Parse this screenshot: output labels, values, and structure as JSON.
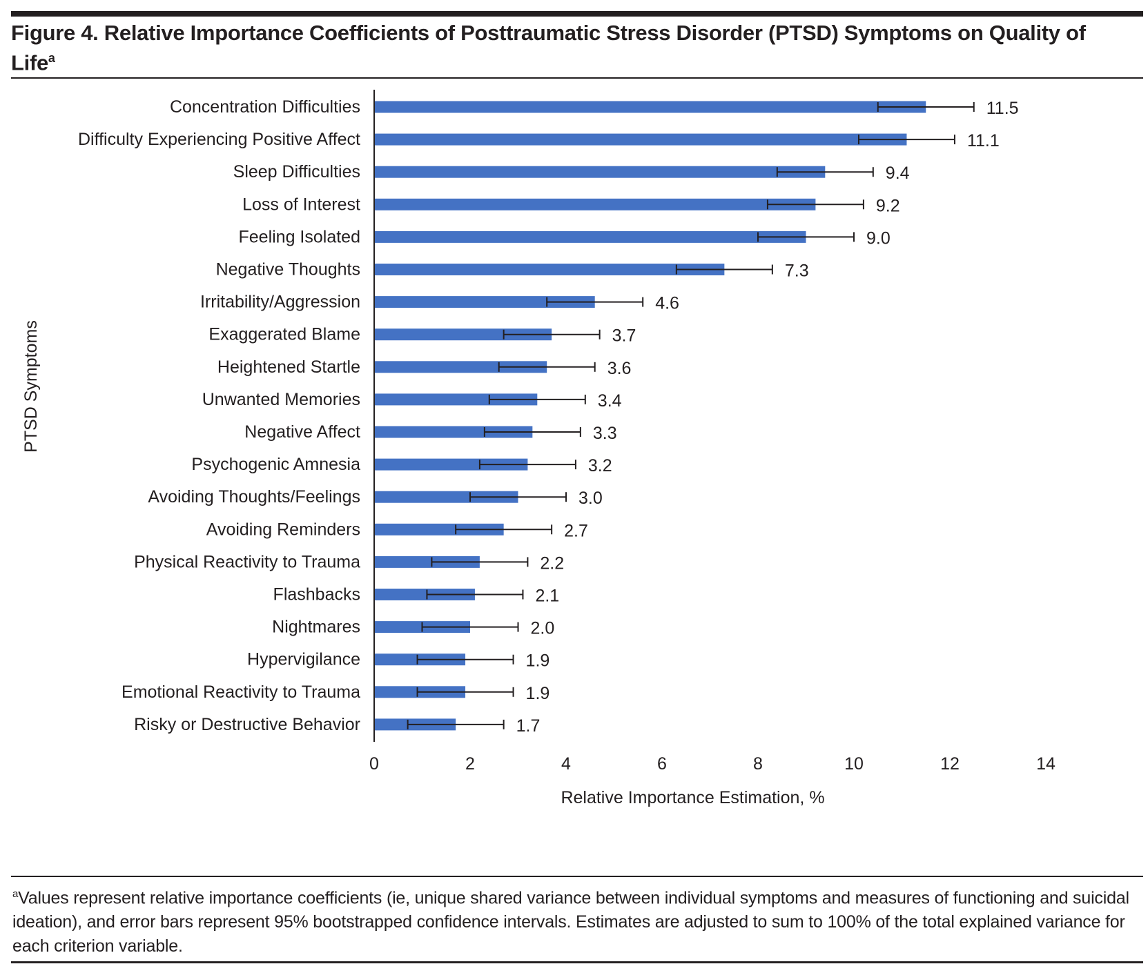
{
  "figure": {
    "title": "Figure 4. Relative Importance Coefficients of Posttraumatic Stress Disorder (PTSD) Symptoms on Quality of Life",
    "title_superscript": "a",
    "footnote_marker": "a",
    "footnote": "Values represent relative importance coefficients (ie, unique shared variance between individual symptoms and measures of functioning and suicidal ideation), and error bars represent 95% bootstrapped confidence intervals. Estimates are adjusted to sum to 100% of the total explained variance for each criterion variable."
  },
  "colors": {
    "bar": "#4472C4",
    "error_bar": "#231f20",
    "text": "#231f20"
  },
  "chart_data": {
    "type": "bar",
    "orientation": "horizontal",
    "title": "Relative Importance Coefficients of Posttraumatic Stress Disorder (PTSD) Symptoms on Quality of Life",
    "xlabel": "Relative Importance Estimation, %",
    "ylabel": "PTSD Symptoms",
    "xlim": [
      0,
      14
    ],
    "xticks": [
      0,
      2,
      4,
      6,
      8,
      10,
      12,
      14
    ],
    "grid": false,
    "legend": "none",
    "categories": [
      "Concentration Difficulties",
      "Difficulty Experiencing Positive Affect",
      "Sleep Difficulties",
      "Loss of Interest",
      "Feeling Isolated",
      "Negative Thoughts",
      "Irritability/Aggression",
      "Exaggerated Blame",
      "Heightened Startle",
      "Unwanted Memories",
      "Negative Affect",
      "Psychogenic Amnesia",
      "Avoiding Thoughts/Feelings",
      "Avoiding Reminders",
      "Physical Reactivity to Trauma",
      "Flashbacks",
      "Nightmares",
      "Hypervigilance",
      "Emotional Reactivity to Trauma",
      "Risky or Destructive Behavior"
    ],
    "values": [
      11.5,
      11.1,
      9.4,
      9.2,
      9.0,
      7.3,
      4.6,
      3.7,
      3.6,
      3.4,
      3.3,
      3.2,
      3.0,
      2.7,
      2.2,
      2.1,
      2.0,
      1.9,
      1.9,
      1.7
    ],
    "value_labels": [
      "11.5",
      "11.1",
      "9.4",
      "9.2",
      "9.0",
      "7.3",
      "4.6",
      "3.7",
      "3.6",
      "3.4",
      "3.3",
      "3.2",
      "3.0",
      "2.7",
      "2.2",
      "2.1",
      "2.0",
      "1.9",
      "1.9",
      "1.7"
    ],
    "ci_lower": [
      10.5,
      10.1,
      8.4,
      8.2,
      8.0,
      6.3,
      3.6,
      2.7,
      2.6,
      2.4,
      2.3,
      2.2,
      2.0,
      1.7,
      1.2,
      1.1,
      1.0,
      0.9,
      0.9,
      0.7
    ],
    "ci_upper": [
      12.5,
      12.1,
      10.4,
      10.2,
      10.0,
      8.3,
      5.6,
      4.7,
      4.6,
      4.4,
      4.3,
      4.2,
      4.0,
      3.7,
      3.2,
      3.1,
      3.0,
      2.9,
      2.9,
      2.7
    ]
  }
}
